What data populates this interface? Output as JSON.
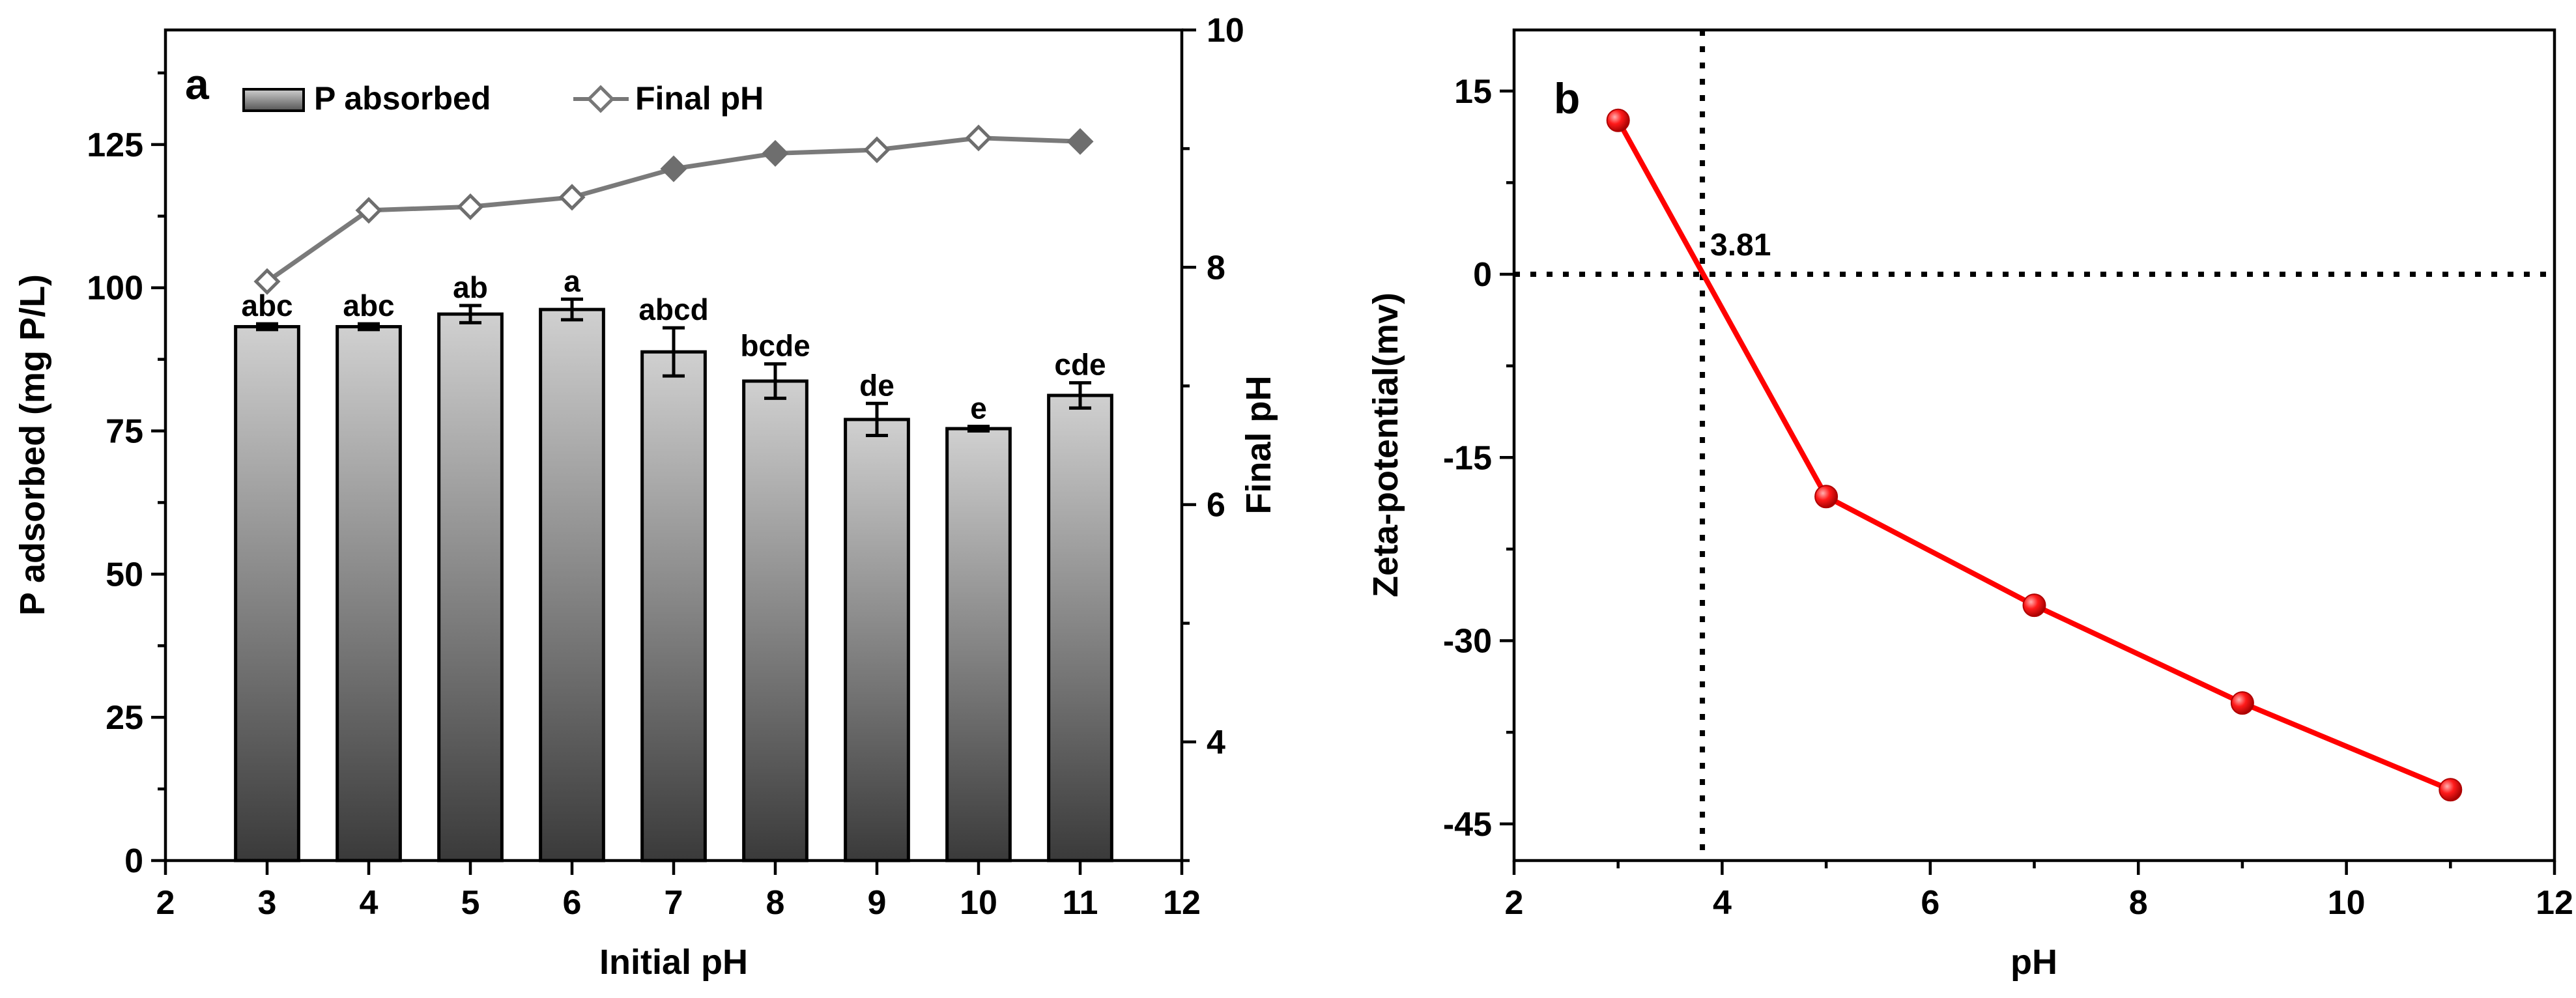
{
  "chart_data": [
    {
      "panel": "a",
      "type": "bar",
      "xlabel": "Initial pH",
      "ylabel": "P adsorbed (mg P/L)",
      "y2label": "Final pH",
      "xlim": [
        2,
        12
      ],
      "ylim": [
        0,
        145
      ],
      "y2lim": [
        3,
        10
      ],
      "xticks": [
        "2",
        "3",
        "4",
        "5",
        "6",
        "7",
        "8",
        "9",
        "10",
        "11",
        "12"
      ],
      "yticks": [
        "0",
        "25",
        "50",
        "75",
        "100",
        "125"
      ],
      "y2ticks": [
        "4",
        "6",
        "8",
        "10"
      ],
      "legend": [
        "P absorbed",
        "Final pH"
      ],
      "categories": [
        3,
        4,
        5,
        6,
        7,
        8,
        9,
        10,
        11
      ],
      "series": [
        {
          "name": "P absorbed",
          "kind": "bar",
          "axis": "left",
          "values": [
            93.2,
            93.2,
            95.4,
            96.2,
            88.8,
            83.7,
            77.0,
            75.4,
            81.2
          ],
          "errors": [
            0.5,
            0.5,
            1.5,
            1.8,
            4.2,
            3.0,
            2.8,
            0.4,
            2.2
          ],
          "labels": [
            "abc",
            "abc",
            "ab",
            "a",
            "abcd",
            "bcde",
            "de",
            "e",
            "cde"
          ]
        },
        {
          "name": "Final pH",
          "kind": "line",
          "axis": "right",
          "values": [
            7.88,
            8.48,
            8.51,
            8.59,
            8.83,
            8.96,
            8.99,
            9.09,
            9.06
          ]
        }
      ]
    },
    {
      "panel": "b",
      "type": "line",
      "xlabel": "pH",
      "ylabel": "Zeta-potential(mv)",
      "xlim": [
        2,
        12
      ],
      "ylim": [
        -48,
        20
      ],
      "xticks": [
        "2",
        "4",
        "6",
        "8",
        "10",
        "12"
      ],
      "yticks": [
        "-45",
        "-30",
        "-15",
        "0",
        "15"
      ],
      "x": [
        3,
        5,
        7,
        9,
        11
      ],
      "y": [
        12.6,
        -18.2,
        -27.1,
        -35.1,
        -42.2
      ],
      "annotation": "3.81",
      "iep": 3.81,
      "color": "#ff0000"
    }
  ]
}
